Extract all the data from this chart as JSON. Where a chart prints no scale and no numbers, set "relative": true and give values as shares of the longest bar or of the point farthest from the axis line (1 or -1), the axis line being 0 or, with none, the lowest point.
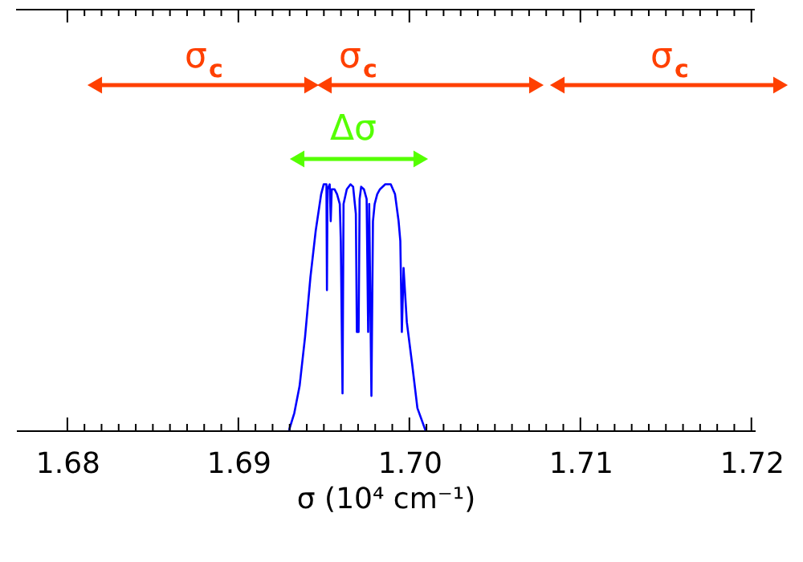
{
  "chart_data": {
    "type": "line",
    "relative": true,
    "xlabel": "σ  (10⁴ cm⁻¹)",
    "xlim": [
      1.677,
      1.7202
    ],
    "xticks": [
      1.68,
      {
        "value": 1.681,
        "label": null
      },
      {
        "value": 1.682,
        "label": null
      },
      {
        "value": 1.683,
        "label": null
      },
      {
        "value": 1.684,
        "label": null
      },
      {
        "value": 1.685,
        "label": null
      },
      {
        "value": 1.686,
        "label": null
      },
      {
        "value": 1.687,
        "label": null
      },
      {
        "value": 1.688,
        "label": null
      },
      {
        "value": 1.689,
        "label": null
      },
      1.69,
      {
        "value": 1.691,
        "label": null
      },
      {
        "value": 1.692,
        "label": null
      },
      {
        "value": 1.693,
        "label": null
      },
      {
        "value": 1.694,
        "label": null
      },
      {
        "value": 1.695,
        "label": null
      },
      {
        "value": 1.696,
        "label": null
      },
      {
        "value": 1.697,
        "label": null
      },
      {
        "value": 1.698,
        "label": null
      },
      {
        "value": 1.699,
        "label": null
      },
      {
        "value": 1.7,
        "label": "1.70"
      },
      {
        "value": 1.701,
        "label": null
      },
      {
        "value": 1.702,
        "label": null
      },
      {
        "value": 1.703,
        "label": null
      },
      {
        "value": 1.704,
        "label": null
      },
      {
        "value": 1.705,
        "label": null
      },
      {
        "value": 1.706,
        "label": null
      },
      {
        "value": 1.707,
        "label": null
      },
      {
        "value": 1.708,
        "label": null
      },
      {
        "value": 1.709,
        "label": null
      },
      1.71,
      {
        "value": 1.711,
        "label": null
      },
      {
        "value": 1.712,
        "label": null
      },
      {
        "value": 1.713,
        "label": null
      },
      {
        "value": 1.714,
        "label": null
      },
      {
        "value": 1.715,
        "label": null
      },
      {
        "value": 1.716,
        "label": null
      },
      {
        "value": 1.717,
        "label": null
      },
      {
        "value": 1.718,
        "label": null
      },
      {
        "value": 1.719,
        "label": null
      },
      1.72
    ],
    "grid": false,
    "line_style": "solid",
    "series": [
      {
        "color": "#0000ff",
        "x": [
          1.69296,
          1.69327,
          1.69358,
          1.6939,
          1.69421,
          1.69452,
          1.69484,
          1.69499,
          1.69515,
          1.69518,
          1.69521,
          1.69534,
          1.6954,
          1.69546,
          1.69562,
          1.69577,
          1.69593,
          1.69599,
          1.69609,
          1.69615,
          1.69634,
          1.69656,
          1.69671,
          1.69687,
          1.69693,
          1.69703,
          1.69709,
          1.69718,
          1.69734,
          1.6975,
          1.69759,
          1.69765,
          1.69778,
          1.69787,
          1.69797,
          1.69812,
          1.69828,
          1.69859,
          1.69891,
          1.69916,
          1.69937,
          1.69947,
          1.69956,
          1.69966,
          1.69985,
          1.70016,
          1.70047,
          1.70094
        ],
        "values": [
          0,
          0.07,
          0.18,
          0.38,
          0.62,
          0.81,
          0.96,
          1,
          1,
          0.57,
          0.98,
          1,
          0.85,
          0.98,
          0.98,
          0.96,
          0.92,
          0.77,
          0.15,
          0.92,
          0.98,
          1,
          0.99,
          0.88,
          0.4,
          0.4,
          0.94,
          0.99,
          0.98,
          0.94,
          0.4,
          0.92,
          0.14,
          0.85,
          0.92,
          0.96,
          0.98,
          1,
          1,
          0.96,
          0.85,
          0.77,
          0.4,
          0.66,
          0.44,
          0.27,
          0.09,
          0
        ]
      }
    ],
    "annotations": [
      "σ$_{c}$",
      "σ$_{c}$",
      "σ$_{c}$",
      "Δσ"
    ]
  }
}
